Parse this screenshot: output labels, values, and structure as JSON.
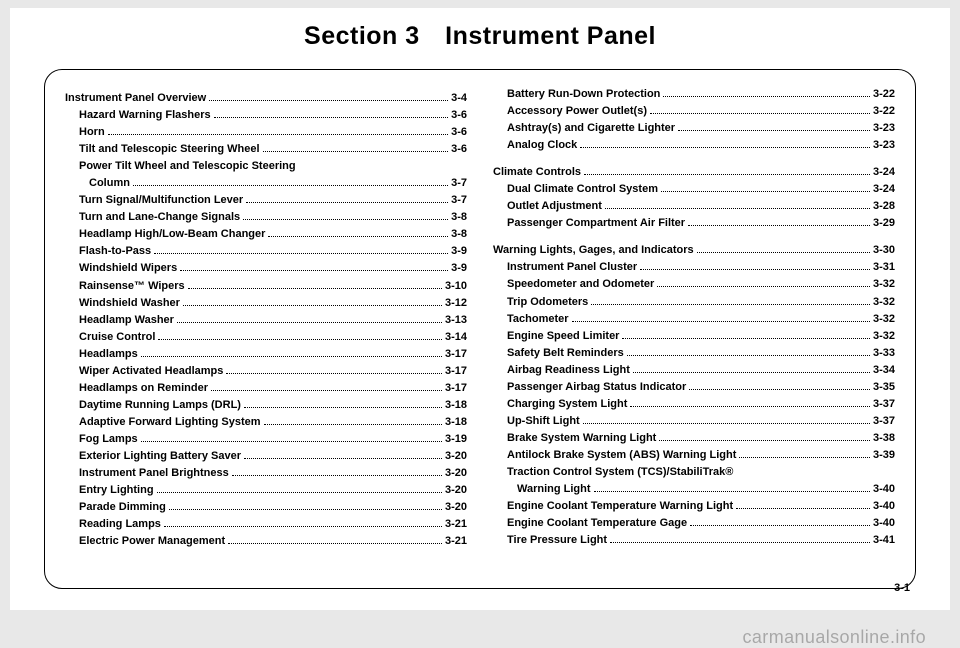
{
  "title": "Section 3 Instrument Panel",
  "page_number": "3-1",
  "watermark": "carmanualsonline.info",
  "left_column": [
    {
      "type": "head",
      "label": "Instrument Panel Overview",
      "page": "3-4"
    },
    {
      "type": "entry",
      "label": "Hazard Warning Flashers",
      "page": "3-6"
    },
    {
      "type": "entry",
      "label": "Horn",
      "page": "3-6"
    },
    {
      "type": "entry",
      "label": "Tilt and Telescopic Steering Wheel",
      "page": "3-6"
    },
    {
      "type": "entry_noPage",
      "label": "Power Tilt Wheel and Telescopic Steering"
    },
    {
      "type": "cont",
      "label": "Column",
      "page": "3-7"
    },
    {
      "type": "entry",
      "label": "Turn Signal/Multifunction Lever",
      "page": "3-7"
    },
    {
      "type": "entry",
      "label": "Turn and Lane-Change Signals",
      "page": "3-8"
    },
    {
      "type": "entry",
      "label": "Headlamp High/Low-Beam Changer",
      "page": "3-8"
    },
    {
      "type": "entry",
      "label": "Flash-to-Pass",
      "page": "3-9"
    },
    {
      "type": "entry",
      "label": "Windshield Wipers",
      "page": "3-9"
    },
    {
      "type": "entry",
      "label": "Rainsense™ Wipers",
      "page": "3-10"
    },
    {
      "type": "entry",
      "label": "Windshield Washer",
      "page": "3-12"
    },
    {
      "type": "entry",
      "label": "Headlamp Washer",
      "page": "3-13"
    },
    {
      "type": "entry",
      "label": "Cruise Control",
      "page": "3-14"
    },
    {
      "type": "entry",
      "label": "Headlamps",
      "page": "3-17"
    },
    {
      "type": "entry",
      "label": "Wiper Activated Headlamps",
      "page": "3-17"
    },
    {
      "type": "entry",
      "label": "Headlamps on Reminder",
      "page": "3-17"
    },
    {
      "type": "entry",
      "label": "Daytime Running Lamps (DRL)",
      "page": "3-18"
    },
    {
      "type": "entry",
      "label": "Adaptive Forward Lighting System",
      "page": "3-18"
    },
    {
      "type": "entry",
      "label": "Fog Lamps",
      "page": "3-19"
    },
    {
      "type": "entry",
      "label": "Exterior Lighting Battery Saver",
      "page": "3-20"
    },
    {
      "type": "entry",
      "label": "Instrument Panel Brightness",
      "page": "3-20"
    },
    {
      "type": "entry",
      "label": "Entry Lighting",
      "page": "3-20"
    },
    {
      "type": "entry",
      "label": "Parade Dimming",
      "page": "3-20"
    },
    {
      "type": "entry",
      "label": "Reading Lamps",
      "page": "3-21"
    },
    {
      "type": "entry",
      "label": "Electric Power Management",
      "page": "3-21"
    }
  ],
  "right_column": [
    {
      "type": "entry",
      "label": "Battery Run-Down Protection",
      "page": "3-22"
    },
    {
      "type": "entry",
      "label": "Accessory Power Outlet(s)",
      "page": "3-22"
    },
    {
      "type": "entry",
      "label": "Ashtray(s) and Cigarette Lighter",
      "page": "3-23"
    },
    {
      "type": "entry",
      "label": "Analog Clock",
      "page": "3-23"
    },
    {
      "type": "head_spaced",
      "label": "Climate Controls",
      "page": "3-24"
    },
    {
      "type": "entry",
      "label": "Dual Climate Control System",
      "page": "3-24"
    },
    {
      "type": "entry",
      "label": "Outlet Adjustment",
      "page": "3-28"
    },
    {
      "type": "entry",
      "label": "Passenger Compartment Air Filter",
      "page": "3-29"
    },
    {
      "type": "head_spaced",
      "label": "Warning Lights, Gages, and Indicators",
      "page": "3-30"
    },
    {
      "type": "entry",
      "label": "Instrument Panel Cluster",
      "page": "3-31"
    },
    {
      "type": "entry",
      "label": "Speedometer and Odometer",
      "page": "3-32"
    },
    {
      "type": "entry",
      "label": "Trip Odometers",
      "page": "3-32"
    },
    {
      "type": "entry",
      "label": "Tachometer",
      "page": "3-32"
    },
    {
      "type": "entry",
      "label": "Engine Speed Limiter",
      "page": "3-32"
    },
    {
      "type": "entry",
      "label": "Safety Belt Reminders",
      "page": "3-33"
    },
    {
      "type": "entry",
      "label": "Airbag Readiness Light",
      "page": "3-34"
    },
    {
      "type": "entry",
      "label": "Passenger Airbag Status Indicator",
      "page": "3-35"
    },
    {
      "type": "entry",
      "label": "Charging System Light",
      "page": "3-37"
    },
    {
      "type": "entry",
      "label": "Up-Shift Light",
      "page": "3-37"
    },
    {
      "type": "entry",
      "label": "Brake System Warning Light",
      "page": "3-38"
    },
    {
      "type": "entry",
      "label": "Antilock Brake System (ABS) Warning Light",
      "page": "3-39"
    },
    {
      "type": "entry_noPage",
      "label": "Traction Control System (TCS)/StabiliTrak®"
    },
    {
      "type": "cont",
      "label": "Warning Light",
      "page": "3-40"
    },
    {
      "type": "entry",
      "label": "Engine Coolant Temperature Warning Light",
      "page": "3-40"
    },
    {
      "type": "entry",
      "label": "Engine Coolant Temperature Gage",
      "page": "3-40"
    },
    {
      "type": "entry",
      "label": "Tire Pressure Light",
      "page": "3-41"
    }
  ]
}
